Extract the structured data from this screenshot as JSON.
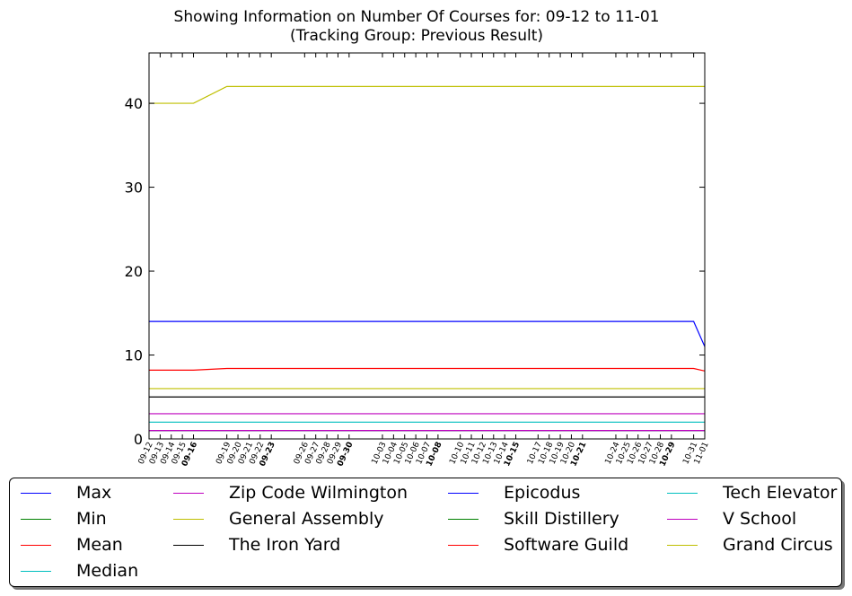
{
  "chart_data": {
    "type": "line",
    "title": "Showing Information on Number Of Courses for: 09-12 to 11-01",
    "subtitle": "(Tracking Group: Previous Result)",
    "xlabel": "",
    "ylabel": "",
    "ylim": [
      0,
      46
    ],
    "yticks": [
      0,
      10,
      20,
      30,
      40
    ],
    "grid": false,
    "legend_position": "bottom",
    "x": [
      "09-12",
      "09-13",
      "09-14",
      "09-15",
      "09-16",
      "09-19",
      "09-20",
      "09-21",
      "09-22",
      "09-23",
      "09-26",
      "09-27",
      "09-28",
      "09-29",
      "09-30",
      "10-03",
      "10-04",
      "10-05",
      "10-06",
      "10-07",
      "10-08",
      "10-10",
      "10-11",
      "10-12",
      "10-13",
      "10-14",
      "10-15",
      "10-17",
      "10-18",
      "10-19",
      "10-20",
      "10-21",
      "10-24",
      "10-25",
      "10-26",
      "10-27",
      "10-28",
      "10-29",
      "10-31",
      "11-01"
    ],
    "x_days": [
      0,
      1,
      2,
      3,
      4,
      7,
      8,
      9,
      10,
      11,
      14,
      15,
      16,
      17,
      18,
      21,
      22,
      23,
      24,
      25,
      26,
      28,
      29,
      30,
      31,
      32,
      33,
      35,
      36,
      37,
      38,
      39,
      42,
      43,
      44,
      45,
      46,
      47,
      49,
      50
    ],
    "bold_ticks": [
      "09-16",
      "09-23",
      "09-30",
      "10-08",
      "10-15",
      "10-21",
      "10-29"
    ],
    "series": [
      {
        "name": "Max",
        "color": "#0000ff",
        "values": [
          14,
          14,
          14,
          14,
          14,
          14,
          14,
          14,
          14,
          14,
          14,
          14,
          14,
          14,
          14,
          14,
          14,
          14,
          14,
          14,
          14,
          14,
          14,
          14,
          14,
          14,
          14,
          14,
          14,
          14,
          14,
          14,
          14,
          14,
          14,
          14,
          14,
          14,
          14,
          11
        ]
      },
      {
        "name": "Min",
        "color": "#008000",
        "values": [
          1,
          1,
          1,
          1,
          1,
          1,
          1,
          1,
          1,
          1,
          1,
          1,
          1,
          1,
          1,
          1,
          1,
          1,
          1,
          1,
          1,
          1,
          1,
          1,
          1,
          1,
          1,
          1,
          1,
          1,
          1,
          1,
          1,
          1,
          1,
          1,
          1,
          1,
          1,
          1
        ]
      },
      {
        "name": "Mean",
        "color": "#ff0000",
        "values": [
          8.2,
          8.2,
          8.2,
          8.2,
          8.2,
          8.4,
          8.4,
          8.4,
          8.4,
          8.4,
          8.4,
          8.4,
          8.4,
          8.4,
          8.4,
          8.4,
          8.4,
          8.4,
          8.4,
          8.4,
          8.4,
          8.4,
          8.4,
          8.4,
          8.4,
          8.4,
          8.4,
          8.4,
          8.4,
          8.4,
          8.4,
          8.4,
          8.4,
          8.4,
          8.4,
          8.4,
          8.4,
          8.4,
          8.4,
          8.1
        ]
      },
      {
        "name": "Median",
        "color": "#00bfbf",
        "values": [
          2,
          2,
          2,
          2,
          2,
          2,
          2,
          2,
          2,
          2,
          2,
          2,
          2,
          2,
          2,
          2,
          2,
          2,
          2,
          2,
          2,
          2,
          2,
          2,
          2,
          2,
          2,
          2,
          2,
          2,
          2,
          2,
          2,
          2,
          2,
          2,
          2,
          2,
          2,
          2
        ]
      },
      {
        "name": "Zip Code Wilmington",
        "color": "#bf00bf",
        "values": [
          3,
          3,
          3,
          3,
          3,
          3,
          3,
          3,
          3,
          3,
          3,
          3,
          3,
          3,
          3,
          3,
          3,
          3,
          3,
          3,
          3,
          3,
          3,
          3,
          3,
          3,
          3,
          3,
          3,
          3,
          3,
          3,
          3,
          3,
          3,
          3,
          3,
          3,
          3,
          3
        ]
      },
      {
        "name": "General Assembly",
        "color": "#bfbf00",
        "values": [
          6,
          6,
          6,
          6,
          6,
          6,
          6,
          6,
          6,
          6,
          6,
          6,
          6,
          6,
          6,
          6,
          6,
          6,
          6,
          6,
          6,
          6,
          6,
          6,
          6,
          6,
          6,
          6,
          6,
          6,
          6,
          6,
          6,
          6,
          6,
          6,
          6,
          6,
          6,
          6
        ]
      },
      {
        "name": "The Iron Yard",
        "color": "#000000",
        "values": [
          5,
          5,
          5,
          5,
          5,
          5,
          5,
          5,
          5,
          5,
          5,
          5,
          5,
          5,
          5,
          5,
          5,
          5,
          5,
          5,
          5,
          5,
          5,
          5,
          5,
          5,
          5,
          5,
          5,
          5,
          5,
          5,
          5,
          5,
          5,
          5,
          5,
          5,
          5,
          5
        ]
      },
      {
        "name": "Epicodus",
        "color": "#0000ff",
        "values": [
          1,
          1,
          1,
          1,
          1,
          1,
          1,
          1,
          1,
          1,
          1,
          1,
          1,
          1,
          1,
          1,
          1,
          1,
          1,
          1,
          1,
          1,
          1,
          1,
          1,
          1,
          1,
          1,
          1,
          1,
          1,
          1,
          1,
          1,
          1,
          1,
          1,
          1,
          1,
          1
        ]
      },
      {
        "name": "Skill Distillery",
        "color": "#008000",
        "values": [
          1,
          1,
          1,
          1,
          1,
          1,
          1,
          1,
          1,
          1,
          1,
          1,
          1,
          1,
          1,
          1,
          1,
          1,
          1,
          1,
          1,
          1,
          1,
          1,
          1,
          1,
          1,
          1,
          1,
          1,
          1,
          1,
          1,
          1,
          1,
          1,
          1,
          1,
          1,
          1
        ]
      },
      {
        "name": "Software Guild",
        "color": "#ff0000",
        "values": [
          1,
          1,
          1,
          1,
          1,
          1,
          1,
          1,
          1,
          1,
          1,
          1,
          1,
          1,
          1,
          1,
          1,
          1,
          1,
          1,
          1,
          1,
          1,
          1,
          1,
          1,
          1,
          1,
          1,
          1,
          1,
          1,
          1,
          1,
          1,
          1,
          1,
          1,
          1,
          1
        ]
      },
      {
        "name": "Tech Elevator",
        "color": "#00bfbf",
        "values": [
          1,
          1,
          1,
          1,
          1,
          1,
          1,
          1,
          1,
          1,
          1,
          1,
          1,
          1,
          1,
          1,
          1,
          1,
          1,
          1,
          1,
          1,
          1,
          1,
          1,
          1,
          1,
          1,
          1,
          1,
          1,
          1,
          1,
          1,
          1,
          1,
          1,
          1,
          1,
          1
        ]
      },
      {
        "name": "V School",
        "color": "#bf00bf",
        "values": [
          1,
          1,
          1,
          1,
          1,
          1,
          1,
          1,
          1,
          1,
          1,
          1,
          1,
          1,
          1,
          1,
          1,
          1,
          1,
          1,
          1,
          1,
          1,
          1,
          1,
          1,
          1,
          1,
          1,
          1,
          1,
          1,
          1,
          1,
          1,
          1,
          1,
          1,
          1,
          1
        ]
      },
      {
        "name": "Grand Circus",
        "color": "#bfbf00",
        "values": [
          40,
          40,
          40,
          40,
          40,
          42,
          42,
          42,
          42,
          42,
          42,
          42,
          42,
          42,
          42,
          42,
          42,
          42,
          42,
          42,
          42,
          42,
          42,
          42,
          42,
          42,
          42,
          42,
          42,
          42,
          42,
          42,
          42,
          42,
          42,
          42,
          42,
          42,
          42,
          42
        ]
      }
    ]
  }
}
